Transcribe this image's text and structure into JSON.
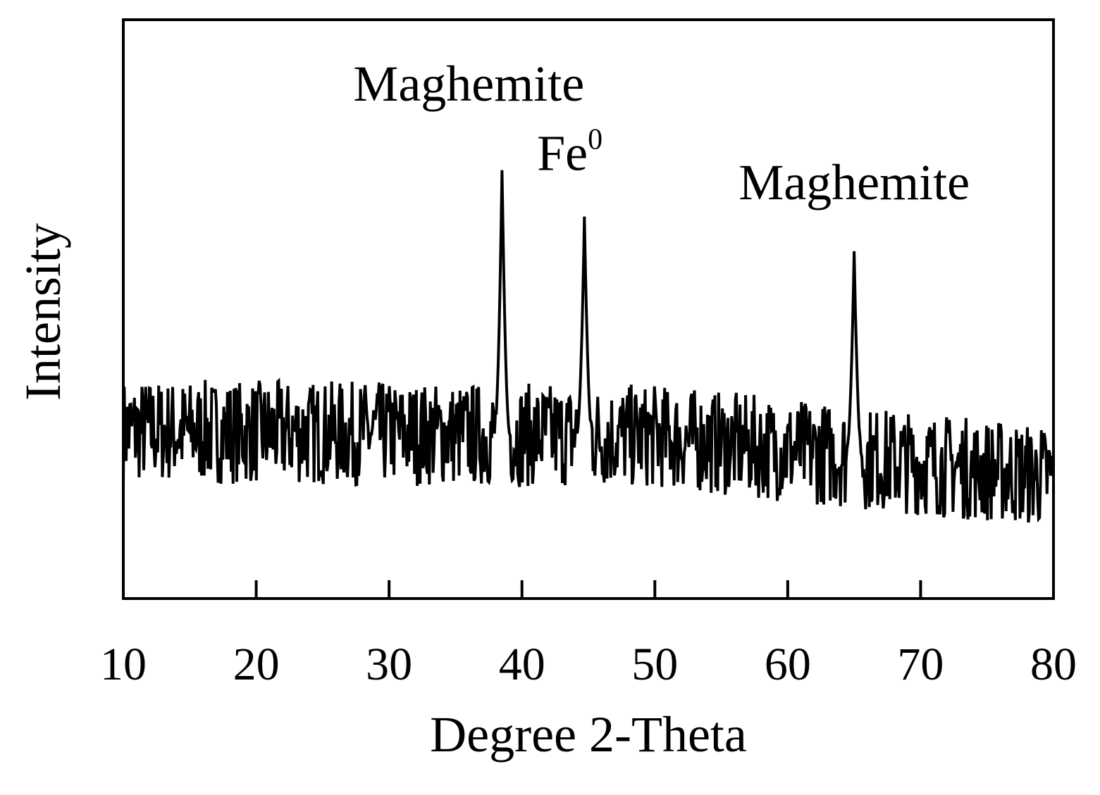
{
  "chart_data": {
    "type": "line",
    "title": "",
    "xlabel": "Degree 2-Theta",
    "ylabel": "Intensity",
    "xlim": [
      10,
      80
    ],
    "ylim": [
      0,
      100
    ],
    "x_ticks": [
      10,
      20,
      30,
      40,
      50,
      60,
      70,
      80
    ],
    "x_tick_labels": [
      "10",
      "20",
      "30",
      "40",
      "50",
      "60",
      "70",
      "80"
    ],
    "y_ticks_shown": false,
    "grid": false,
    "legend": "none",
    "series": [
      {
        "line_color": "#000000",
        "baseline": {
          "x": [
            10,
            50,
            80
          ],
          "y": [
            29,
            28,
            21
          ]
        },
        "noise_amplitude": 9,
        "peaks": [
          {
            "x": 38.5,
            "y": 74
          },
          {
            "x": 44.7,
            "y": 66
          },
          {
            "x": 65.0,
            "y": 60
          }
        ],
        "sample_step": 0.07,
        "seed": 7
      }
    ],
    "annotations": [
      {
        "text": "Maghemite",
        "x": 36,
        "y": 86
      },
      {
        "text": "Fe",
        "superscript": "0",
        "x": 43.6,
        "y": 74
      },
      {
        "text": "Maghemite",
        "x": 65,
        "y": 69
      }
    ]
  }
}
